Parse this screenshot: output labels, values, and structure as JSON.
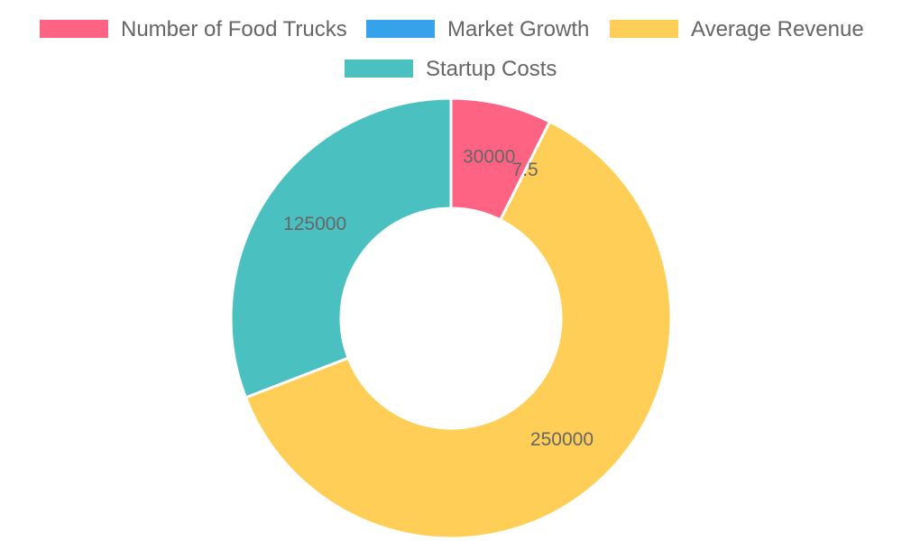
{
  "chart_data": {
    "type": "doughnut",
    "title": "",
    "categories": [
      "Number of Food Trucks",
      "Market Growth",
      "Average Revenue",
      "Startup Costs"
    ],
    "values": [
      30000,
      7.5,
      250000,
      125000
    ],
    "colors": [
      "#ff6384",
      "#36a2eb",
      "#ffce56",
      "#4bc0c0"
    ],
    "data_labels": [
      "30000",
      "7.5",
      "250000",
      "125000"
    ],
    "legend": {
      "position": "top",
      "entries": [
        "Number of Food Trucks",
        "Market Growth",
        "Average Revenue",
        "Startup Costs"
      ]
    }
  }
}
